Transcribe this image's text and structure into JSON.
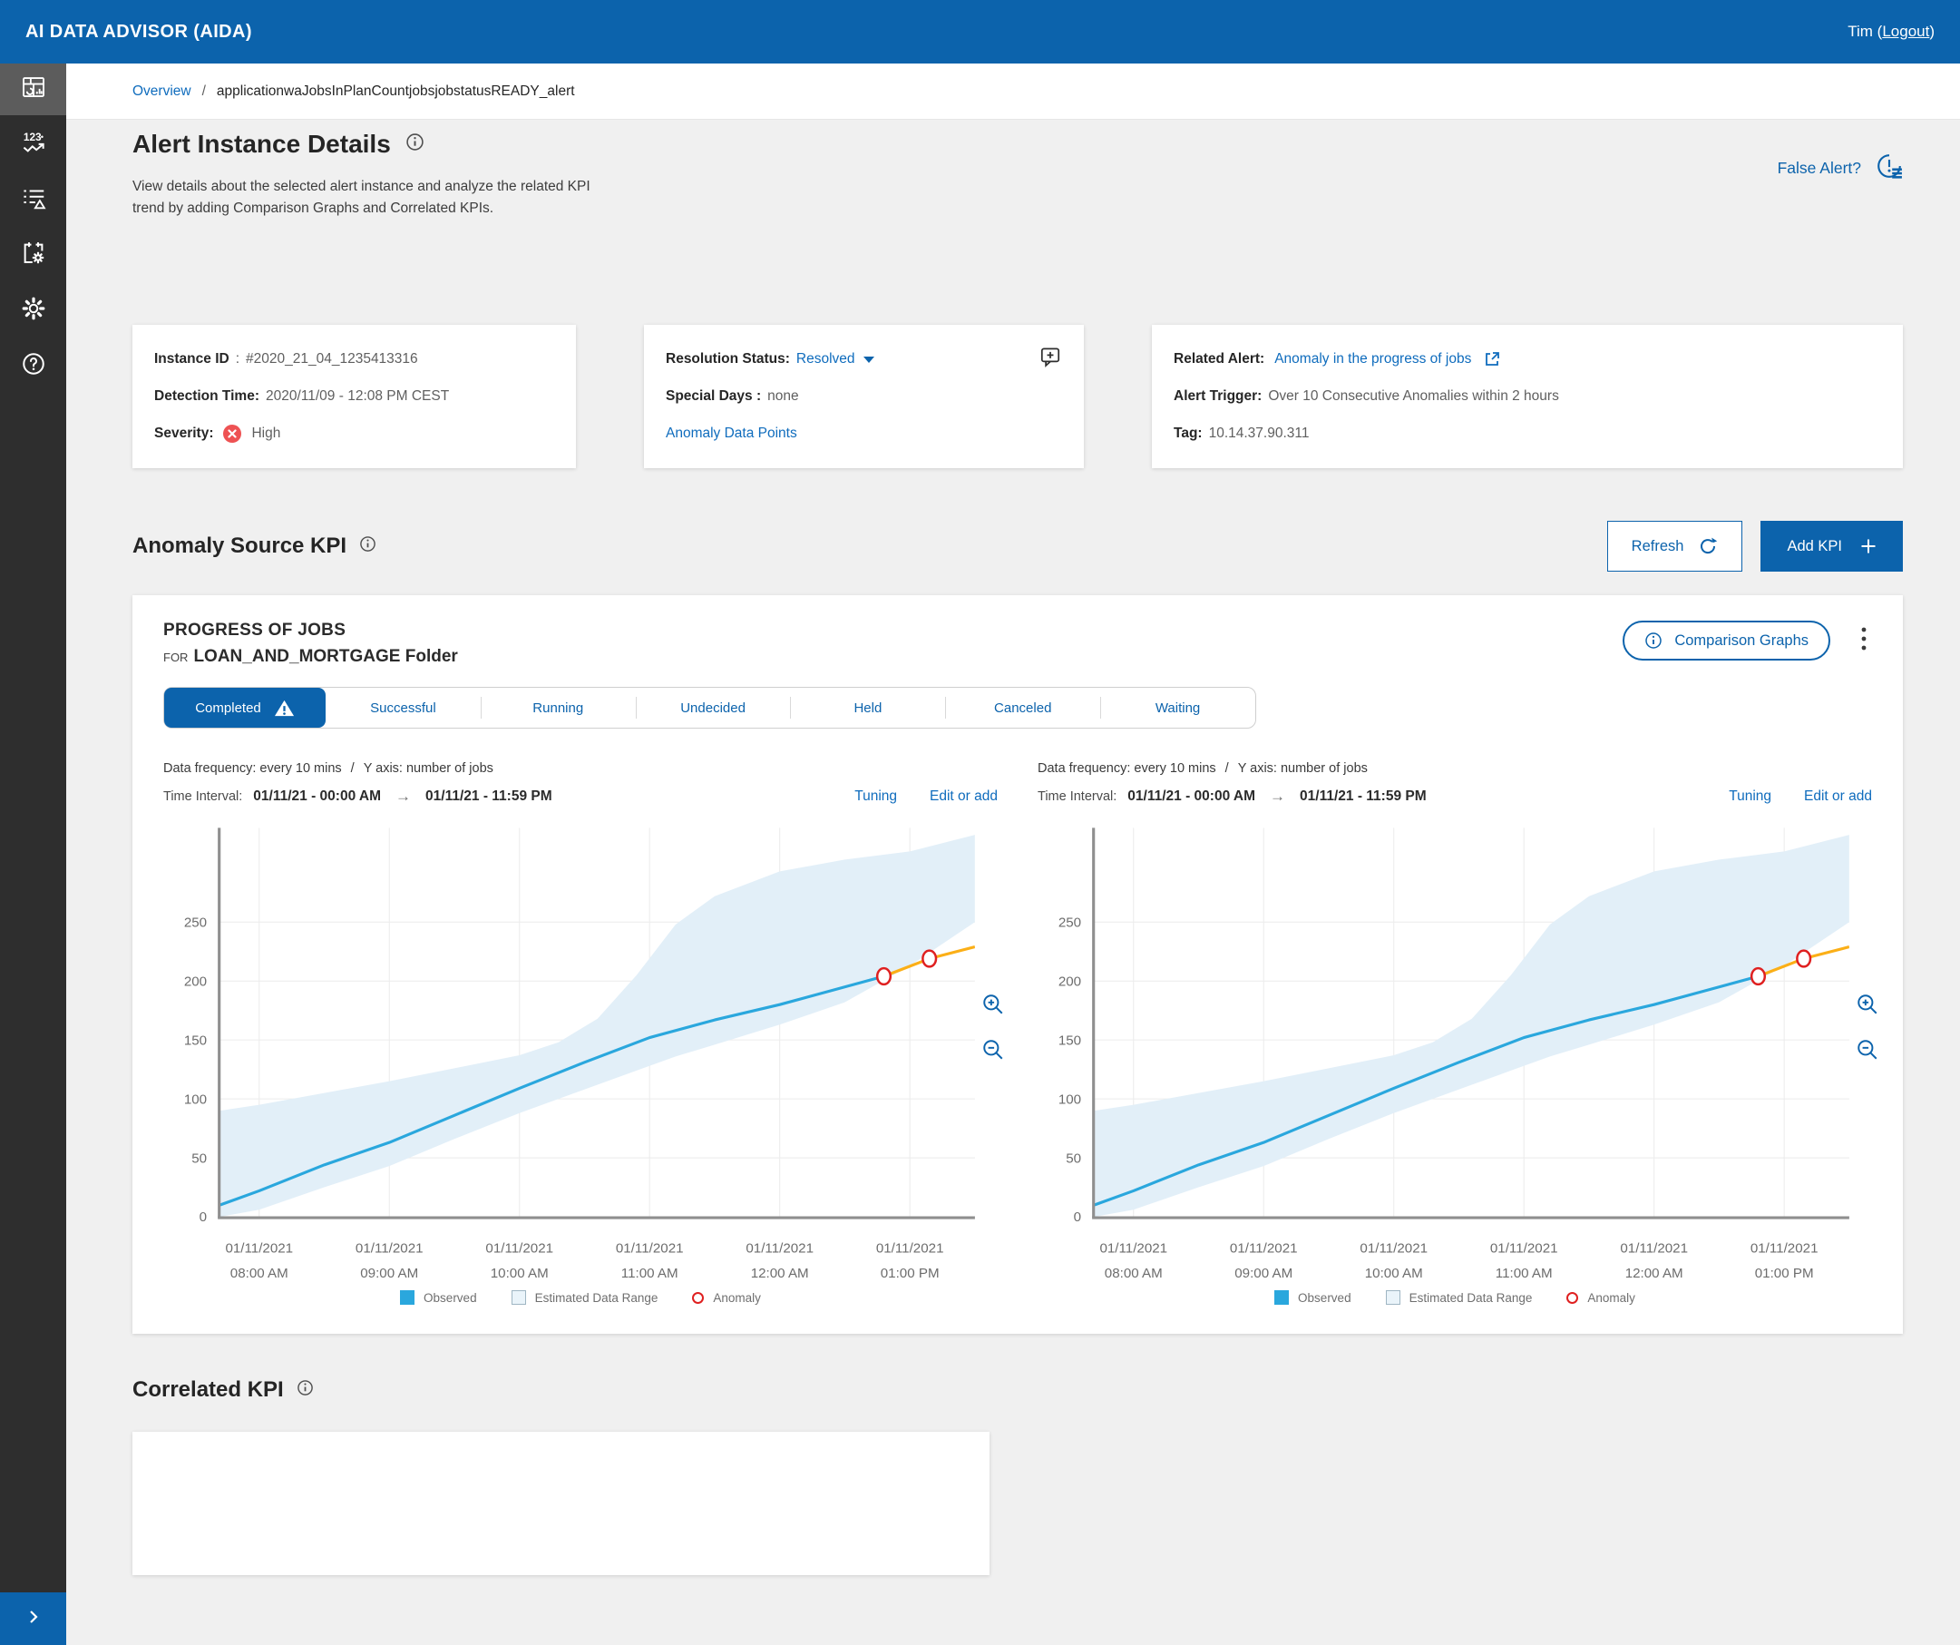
{
  "colors": {
    "accent_blue": "#0c63ac",
    "link_blue": "#0f6cbd",
    "observed": "#2aa7dd",
    "estimated_range": "#e2eff8",
    "forecast": "#fbaf17",
    "anomaly": "#df2020",
    "severity_high": "#ee5253",
    "sidebar_bg": "#2e2e2e"
  },
  "header": {
    "app_title": "AI DATA ADVISOR (AIDA)",
    "user_label_before": "Tim (",
    "logout_label": "Logout",
    "user_label_after": ")"
  },
  "sidebar": {
    "items": [
      "dashboard",
      "kpi-numbers",
      "alert-list",
      "planned-events",
      "settings",
      "help"
    ],
    "selected": "dashboard"
  },
  "breadcrumb": {
    "root": "Overview",
    "separator": "/",
    "current": "applicationwaJobsInPlanCountjobsjobstatusREADY_alert"
  },
  "page": {
    "title": "Alert Instance Details",
    "description": "View details about the selected alert instance and analyze the related KPI trend by adding Comparison Graphs and Correlated KPIs.",
    "false_alert_label": "False Alert?"
  },
  "instance_card": {
    "instance_id_label": "Instance ID",
    "instance_id_separator": " : ",
    "instance_id_value": "#2020_21_04_1235413316",
    "detection_time_label": "Detection Time:",
    "detection_time_value": "2020/11/09 - 12:08 PM CEST",
    "severity_label": "Severity:",
    "severity_value": "High"
  },
  "resolution_card": {
    "status_label": "Resolution Status:",
    "status_value": "Resolved",
    "special_days_label": "Special Days :",
    "special_days_value": "none",
    "anomaly_data_points_label": "Anomaly Data Points"
  },
  "related_card": {
    "related_alert_label": "Related Alert:",
    "related_alert_value": "Anomaly in the progress of jobs",
    "alert_trigger_label": "Alert Trigger:",
    "alert_trigger_value": "Over 10 Consecutive Anomalies within 2 hours",
    "tag_label": "Tag:",
    "tag_value": "10.14.37.90.311"
  },
  "kpi_section": {
    "title": "Anomaly Source KPI",
    "refresh_label": "Refresh",
    "add_kpi_label": "Add KPI"
  },
  "kpi_card": {
    "title": "PROGRESS OF JOBS",
    "for_label": "FOR",
    "subtitle": "LOAN_AND_MORTGAGE Folder",
    "comparison_graphs_label": "Comparison Graphs",
    "tabs": [
      {
        "label": "Completed",
        "active": true,
        "has_warning": true
      },
      {
        "label": "Successful",
        "active": false
      },
      {
        "label": "Running",
        "active": false
      },
      {
        "label": "Undecided",
        "active": false
      },
      {
        "label": "Held",
        "active": false
      },
      {
        "label": "Canceled",
        "active": false
      },
      {
        "label": "Waiting",
        "active": false
      }
    ]
  },
  "correlated_section": {
    "title": "Correlated KPI"
  },
  "chart_data": [
    {
      "type": "line",
      "meta": {
        "frequency": "Data frequency: every 10 mins",
        "separator": "/",
        "y_axis": "Y axis: number of jobs",
        "time_interval_label": "Time Interval:",
        "time_from": "01/11/21 - 00:00 AM",
        "time_to": "01/11/21 - 11:59 PM",
        "tuning_label": "Tuning",
        "edit_label": "Edit or add"
      },
      "xlim": [
        7.7,
        13.5
      ],
      "ylim": [
        0,
        330
      ],
      "y_ticks": [
        0,
        50,
        100,
        150,
        200,
        250
      ],
      "x_ticks": [
        {
          "hour": 8,
          "date": "01/11/2021",
          "time": "08:00 AM"
        },
        {
          "hour": 9,
          "date": "01/11/2021",
          "time": "09:00 AM"
        },
        {
          "hour": 10,
          "date": "01/11/2021",
          "time": "10:00 AM"
        },
        {
          "hour": 11,
          "date": "01/11/2021",
          "time": "11:00 AM"
        },
        {
          "hour": 12,
          "date": "01/11/2021",
          "time": "12:00 AM"
        },
        {
          "hour": 13,
          "date": "01/11/2021",
          "time": "01:00 PM"
        }
      ],
      "band": {
        "name": "Estimated Data Range",
        "color": "#e2eff8",
        "x": [
          7.7,
          8,
          8.5,
          9,
          9.5,
          10,
          10.3,
          10.6,
          10.9,
          11.2,
          11.5,
          12,
          12.5,
          13,
          13.5
        ],
        "upper": [
          90,
          95,
          105,
          115,
          126,
          137,
          148,
          168,
          205,
          248,
          272,
          293,
          303,
          310,
          324
        ],
        "lower": [
          0,
          6,
          25,
          43,
          66,
          88,
          100,
          112,
          124,
          136,
          146,
          163,
          182,
          213,
          250
        ]
      },
      "series": [
        {
          "name": "Observed",
          "color": "#2aa7dd",
          "x": [
            7.7,
            8,
            8.5,
            9,
            9.5,
            10,
            10.5,
            11,
            11.5,
            12,
            12.4,
            12.8
          ],
          "y": [
            10,
            22,
            44,
            63,
            86,
            109,
            131,
            152,
            167,
            180,
            192,
            204
          ]
        },
        {
          "name": "Forecast",
          "color": "#fbaf17",
          "x": [
            12.8,
            13.15,
            13.5
          ],
          "y": [
            204,
            219,
            229
          ]
        }
      ],
      "anomalies": {
        "name": "Anomaly",
        "color": "#df2020",
        "points": [
          {
            "x": 12.8,
            "y": 204
          },
          {
            "x": 13.15,
            "y": 219
          }
        ]
      },
      "legend": [
        "Observed",
        "Estimated Data Range",
        "Anomaly"
      ]
    },
    {
      "type": "line",
      "meta": {
        "frequency": "Data frequency: every 10 mins",
        "separator": "/",
        "y_axis": "Y axis: number of jobs",
        "time_interval_label": "Time Interval:",
        "time_from": "01/11/21 - 00:00 AM",
        "time_to": "01/11/21 - 11:59 PM",
        "tuning_label": "Tuning",
        "edit_label": "Edit or add"
      },
      "xlim": [
        7.7,
        13.5
      ],
      "ylim": [
        0,
        330
      ],
      "y_ticks": [
        0,
        50,
        100,
        150,
        200,
        250
      ],
      "x_ticks": [
        {
          "hour": 8,
          "date": "01/11/2021",
          "time": "08:00 AM"
        },
        {
          "hour": 9,
          "date": "01/11/2021",
          "time": "09:00 AM"
        },
        {
          "hour": 10,
          "date": "01/11/2021",
          "time": "10:00 AM"
        },
        {
          "hour": 11,
          "date": "01/11/2021",
          "time": "11:00 AM"
        },
        {
          "hour": 12,
          "date": "01/11/2021",
          "time": "12:00 AM"
        },
        {
          "hour": 13,
          "date": "01/11/2021",
          "time": "01:00 PM"
        }
      ],
      "band": {
        "name": "Estimated Data Range",
        "color": "#e2eff8",
        "x": [
          7.7,
          8,
          8.5,
          9,
          9.5,
          10,
          10.3,
          10.6,
          10.9,
          11.2,
          11.5,
          12,
          12.5,
          13,
          13.5
        ],
        "upper": [
          90,
          95,
          105,
          115,
          126,
          137,
          148,
          168,
          205,
          248,
          272,
          293,
          303,
          310,
          324
        ],
        "lower": [
          0,
          6,
          25,
          43,
          66,
          88,
          100,
          112,
          124,
          136,
          146,
          163,
          182,
          213,
          250
        ]
      },
      "series": [
        {
          "name": "Observed",
          "color": "#2aa7dd",
          "x": [
            7.7,
            8,
            8.5,
            9,
            9.5,
            10,
            10.5,
            11,
            11.5,
            12,
            12.4,
            12.8
          ],
          "y": [
            10,
            22,
            44,
            63,
            86,
            109,
            131,
            152,
            167,
            180,
            192,
            204
          ]
        },
        {
          "name": "Forecast",
          "color": "#fbaf17",
          "x": [
            12.8,
            13.15,
            13.5
          ],
          "y": [
            204,
            219,
            229
          ]
        }
      ],
      "anomalies": {
        "name": "Anomaly",
        "color": "#df2020",
        "points": [
          {
            "x": 12.8,
            "y": 204
          },
          {
            "x": 13.15,
            "y": 219
          }
        ]
      },
      "legend": [
        "Observed",
        "Estimated Data Range",
        "Anomaly"
      ]
    }
  ]
}
